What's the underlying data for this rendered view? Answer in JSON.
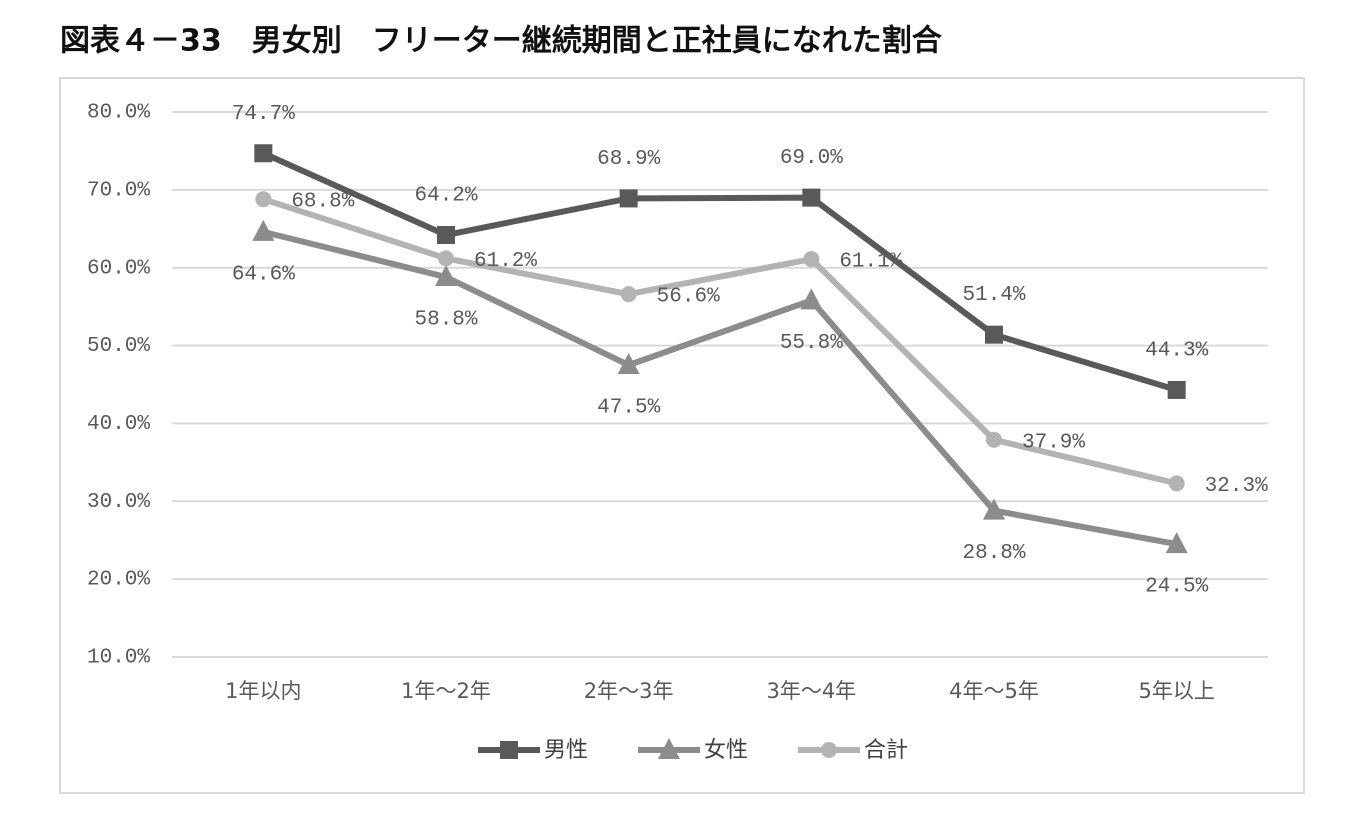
{
  "chart_data": {
    "type": "line",
    "title": "図表４－33　男女別　フリーター継続期間と正社員になれた割合",
    "categories": [
      "1年以内",
      "1年～2年",
      "2年～3年",
      "3年～4年",
      "4年～5年",
      "5年以上"
    ],
    "series": [
      {
        "name": "男性",
        "color": "#595959",
        "marker": "square",
        "values": [
          74.7,
          64.2,
          68.9,
          69.0,
          51.4,
          44.3
        ],
        "value_labels": [
          "74.7%",
          "64.2%",
          "68.9%",
          "69.0%",
          "51.4%",
          "44.3%"
        ]
      },
      {
        "name": "女性",
        "color": "#8c8c8c",
        "marker": "triangle",
        "values": [
          64.6,
          58.8,
          47.5,
          55.8,
          28.8,
          24.5
        ],
        "value_labels": [
          "64.6%",
          "58.8%",
          "47.5%",
          "55.8%",
          "28.8%",
          "24.5%"
        ]
      },
      {
        "name": "合計",
        "color": "#b3b3b3",
        "marker": "circle",
        "values": [
          68.8,
          61.2,
          56.6,
          61.1,
          37.9,
          32.3
        ],
        "value_labels": [
          "68.8%",
          "61.2%",
          "56.6%",
          "61.1%",
          "37.9%",
          "32.3%"
        ]
      }
    ],
    "ylim": [
      10,
      80
    ],
    "yticks": [
      {
        "value": 10,
        "label": "10.0%"
      },
      {
        "value": 20,
        "label": "20.0%"
      },
      {
        "value": 30,
        "label": "30.0%"
      },
      {
        "value": 40,
        "label": "40.0%"
      },
      {
        "value": 50,
        "label": "50.0%"
      },
      {
        "value": 60,
        "label": "60.0%"
      },
      {
        "value": 70,
        "label": "70.0%"
      },
      {
        "value": 80,
        "label": "80.0%"
      }
    ],
    "grid": true,
    "legend": "bottom"
  }
}
